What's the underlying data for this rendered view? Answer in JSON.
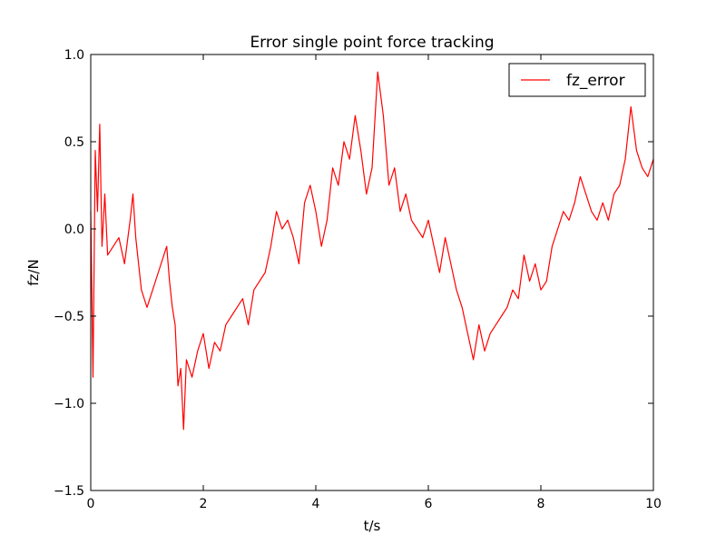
{
  "chart_data": {
    "type": "line",
    "title": "Error single point force tracking",
    "xlabel": "t/s",
    "ylabel": "fz/N",
    "xlim": [
      0,
      10
    ],
    "ylim": [
      -1.5,
      1.0
    ],
    "xticks": [
      0,
      2,
      4,
      6,
      8,
      10
    ],
    "xtick_labels": [
      "0",
      "2",
      "4",
      "6",
      "8",
      "10"
    ],
    "yticks": [
      -1.5,
      -1.0,
      -0.5,
      0.0,
      0.5,
      1.0
    ],
    "ytick_labels": [
      "−1.5",
      "−1.0",
      "−0.5",
      "0.0",
      "0.5",
      "1.0"
    ],
    "grid": false,
    "legend_position": "top-right",
    "series": [
      {
        "name": "fz_error",
        "color": "#ff0000",
        "x": [
          0.0,
          0.04,
          0.08,
          0.12,
          0.16,
          0.2,
          0.25,
          0.3,
          0.4,
          0.5,
          0.6,
          0.7,
          0.75,
          0.8,
          0.9,
          1.0,
          1.1,
          1.2,
          1.3,
          1.35,
          1.4,
          1.45,
          1.5,
          1.55,
          1.6,
          1.65,
          1.7,
          1.8,
          1.9,
          2.0,
          2.1,
          2.2,
          2.3,
          2.4,
          2.5,
          2.6,
          2.7,
          2.8,
          2.9,
          3.0,
          3.1,
          3.2,
          3.3,
          3.4,
          3.5,
          3.6,
          3.7,
          3.8,
          3.9,
          4.0,
          4.1,
          4.2,
          4.3,
          4.4,
          4.5,
          4.6,
          4.7,
          4.8,
          4.9,
          5.0,
          5.1,
          5.2,
          5.3,
          5.4,
          5.5,
          5.6,
          5.7,
          5.8,
          5.9,
          6.0,
          6.1,
          6.2,
          6.3,
          6.4,
          6.5,
          6.6,
          6.7,
          6.8,
          6.9,
          7.0,
          7.1,
          7.2,
          7.3,
          7.4,
          7.5,
          7.6,
          7.7,
          7.8,
          7.9,
          8.0,
          8.1,
          8.2,
          8.3,
          8.4,
          8.5,
          8.6,
          8.7,
          8.8,
          8.9,
          9.0,
          9.1,
          9.2,
          9.3,
          9.4,
          9.5,
          9.6,
          9.7,
          9.8,
          9.9,
          10.0
        ],
        "y": [
          0.1,
          -0.85,
          0.45,
          0.1,
          0.6,
          -0.1,
          0.2,
          -0.15,
          -0.1,
          -0.05,
          -0.2,
          0.05,
          0.2,
          -0.05,
          -0.35,
          -0.45,
          -0.35,
          -0.25,
          -0.15,
          -0.1,
          -0.3,
          -0.45,
          -0.55,
          -0.9,
          -0.8,
          -1.15,
          -0.75,
          -0.85,
          -0.7,
          -0.6,
          -0.8,
          -0.65,
          -0.7,
          -0.55,
          -0.5,
          -0.45,
          -0.4,
          -0.55,
          -0.35,
          -0.3,
          -0.25,
          -0.1,
          0.1,
          0.0,
          0.05,
          -0.05,
          -0.2,
          0.15,
          0.25,
          0.1,
          -0.1,
          0.05,
          0.35,
          0.25,
          0.5,
          0.4,
          0.65,
          0.45,
          0.2,
          0.35,
          0.9,
          0.65,
          0.25,
          0.35,
          0.1,
          0.2,
          0.05,
          0.0,
          -0.05,
          0.05,
          -0.1,
          -0.25,
          -0.05,
          -0.2,
          -0.35,
          -0.45,
          -0.6,
          -0.75,
          -0.55,
          -0.7,
          -0.6,
          -0.55,
          -0.5,
          -0.45,
          -0.35,
          -0.4,
          -0.15,
          -0.3,
          -0.2,
          -0.35,
          -0.3,
          -0.1,
          0.0,
          0.1,
          0.05,
          0.15,
          0.3,
          0.2,
          0.1,
          0.05,
          0.15,
          0.05,
          0.2,
          0.25,
          0.4,
          0.7,
          0.45,
          0.35,
          0.3,
          0.4
        ]
      }
    ]
  }
}
